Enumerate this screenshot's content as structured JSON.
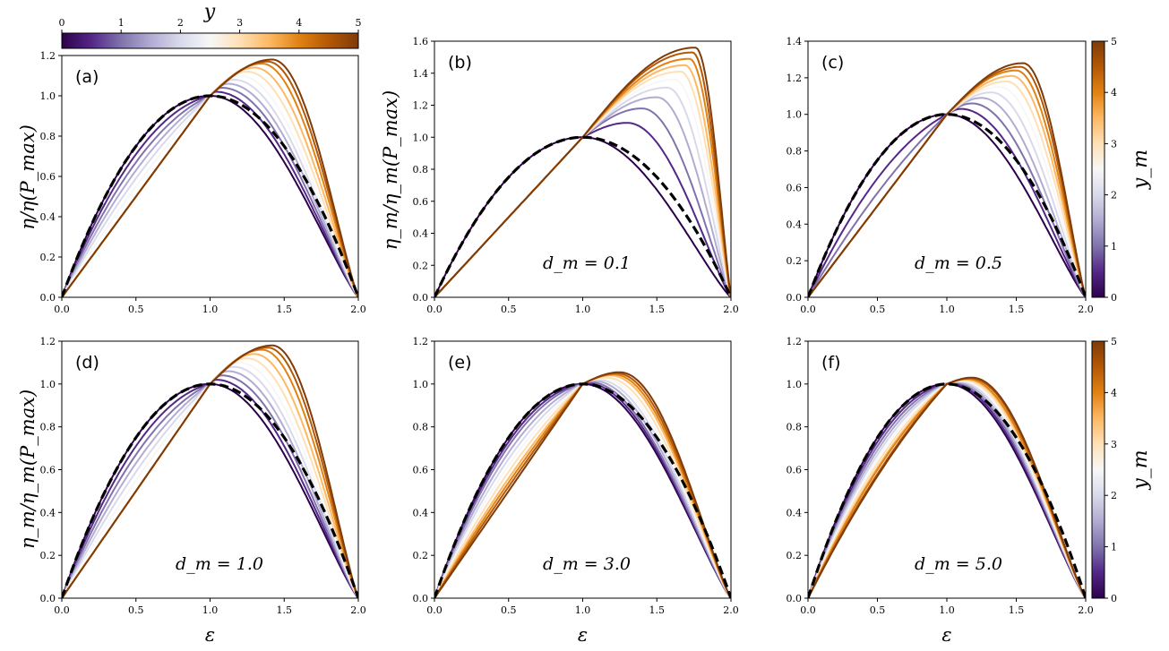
{
  "figure": {
    "top_colorbar": {
      "label": "y",
      "ticks": [
        "0",
        "1",
        "2",
        "3",
        "4",
        "5"
      ],
      "range": [
        0,
        5
      ]
    },
    "side_colorbar_label": "y_m",
    "side_colorbar_ticks": [
      "0",
      "1",
      "2",
      "3",
      "4",
      "5"
    ],
    "xlabel": "ε",
    "colormap_stops": [
      "#2d004b",
      "#542788",
      "#8073ac",
      "#b2abd2",
      "#d8daeb",
      "#f7f7f7",
      "#fee0b6",
      "#fdb863",
      "#e08214",
      "#b35806",
      "#7f3b08"
    ]
  },
  "chart_data": [
    {
      "type": "line",
      "panel": "(a)",
      "annotation": "",
      "ylabel": "η/η(P_max)",
      "xlim": [
        0,
        2
      ],
      "ylim": [
        0,
        1.2
      ],
      "xticks": [
        "0.0",
        "0.5",
        "1.0",
        "1.5",
        "2.0"
      ],
      "yticks": [
        "0.0",
        "0.2",
        "0.4",
        "0.6",
        "0.8",
        "1.0",
        "1.2"
      ],
      "curve_family": {
        "param_values": [
          0,
          0.5,
          1,
          1.5,
          2,
          2.5,
          3,
          3.5,
          4,
          4.5,
          5
        ],
        "peak_x": [
          1.0,
          1.04,
          1.08,
          1.12,
          1.16,
          1.2,
          1.25,
          1.3,
          1.35,
          1.39,
          1.42
        ],
        "peak_y": [
          1.0,
          1.02,
          1.04,
          1.06,
          1.08,
          1.1,
          1.12,
          1.14,
          1.16,
          1.17,
          1.18
        ]
      },
      "dashed_reference": {
        "x": [
          0,
          0.25,
          0.5,
          0.75,
          1.0,
          1.25,
          1.5,
          1.75,
          2.0
        ],
        "y": [
          0,
          0.44,
          0.75,
          0.94,
          1.0,
          0.94,
          0.75,
          0.44,
          0
        ]
      }
    },
    {
      "type": "line",
      "panel": "(b)",
      "annotation": "d_m = 0.1",
      "ylabel": "η_m/η_m(P_max)",
      "xlim": [
        0,
        2
      ],
      "ylim": [
        0,
        1.6
      ],
      "xticks": [
        "0.0",
        "0.5",
        "1.0",
        "1.5",
        "2.0"
      ],
      "yticks": [
        "0.0",
        "0.2",
        "0.4",
        "0.6",
        "0.8",
        "1.0",
        "1.2",
        "1.4",
        "1.6"
      ],
      "curve_family": {
        "param_values": [
          0,
          0.5,
          1,
          1.5,
          2,
          2.5,
          3,
          3.5,
          4,
          4.5,
          5
        ],
        "peak_x": [
          1.0,
          1.3,
          1.4,
          1.5,
          1.57,
          1.62,
          1.66,
          1.69,
          1.72,
          1.74,
          1.76
        ],
        "peak_y": [
          1.0,
          1.09,
          1.18,
          1.25,
          1.31,
          1.36,
          1.41,
          1.45,
          1.49,
          1.53,
          1.56
        ]
      },
      "dashed_reference": {
        "x": [
          0,
          0.25,
          0.5,
          0.75,
          1.0,
          1.25,
          1.5,
          1.75,
          2.0
        ],
        "y": [
          0,
          0.44,
          0.75,
          0.94,
          1.0,
          0.94,
          0.75,
          0.44,
          0
        ]
      }
    },
    {
      "type": "line",
      "panel": "(c)",
      "annotation": "d_m = 0.5",
      "ylabel": "",
      "xlim": [
        0,
        2
      ],
      "ylim": [
        0,
        1.4
      ],
      "xticks": [
        "0.0",
        "0.5",
        "1.0",
        "1.5",
        "2.0"
      ],
      "yticks": [
        "0.0",
        "0.2",
        "0.4",
        "0.6",
        "0.8",
        "1.0",
        "1.2",
        "1.4"
      ],
      "curve_family": {
        "param_values": [
          0,
          0.5,
          1,
          1.5,
          2,
          2.5,
          3,
          3.5,
          4,
          4.5,
          5
        ],
        "peak_x": [
          1.0,
          1.1,
          1.18,
          1.25,
          1.32,
          1.38,
          1.43,
          1.47,
          1.5,
          1.53,
          1.55
        ],
        "peak_y": [
          1.0,
          1.03,
          1.06,
          1.09,
          1.12,
          1.15,
          1.18,
          1.21,
          1.24,
          1.26,
          1.28
        ]
      },
      "dashed_reference": {
        "x": [
          0,
          0.25,
          0.5,
          0.75,
          1.0,
          1.25,
          1.5,
          1.75,
          2.0
        ],
        "y": [
          0,
          0.44,
          0.75,
          0.94,
          1.0,
          0.94,
          0.75,
          0.44,
          0
        ]
      }
    },
    {
      "type": "line",
      "panel": "(d)",
      "annotation": "d_m = 1.0",
      "ylabel": "η_m/η_m(P_max)",
      "xlim": [
        0,
        2
      ],
      "ylim": [
        0,
        1.2
      ],
      "xticks": [
        "0.0",
        "0.5",
        "1.0",
        "1.5",
        "2.0"
      ],
      "yticks": [
        "0.0",
        "0.2",
        "0.4",
        "0.6",
        "0.8",
        "1.0",
        "1.2"
      ],
      "curve_family": {
        "param_values": [
          0,
          0.5,
          1,
          1.5,
          2,
          2.5,
          3,
          3.5,
          4,
          4.5,
          5
        ],
        "peak_x": [
          1.0,
          1.04,
          1.08,
          1.12,
          1.16,
          1.2,
          1.25,
          1.3,
          1.35,
          1.39,
          1.42
        ],
        "peak_y": [
          1.0,
          1.02,
          1.04,
          1.06,
          1.08,
          1.1,
          1.12,
          1.14,
          1.16,
          1.17,
          1.18
        ]
      },
      "dashed_reference": {
        "x": [
          0,
          0.25,
          0.5,
          0.75,
          1.0,
          1.25,
          1.5,
          1.75,
          2.0
        ],
        "y": [
          0,
          0.44,
          0.75,
          0.94,
          1.0,
          0.94,
          0.75,
          0.44,
          0
        ]
      }
    },
    {
      "type": "line",
      "panel": "(e)",
      "annotation": "d_m = 3.0",
      "ylabel": "",
      "xlim": [
        0,
        2
      ],
      "ylim": [
        0,
        1.2
      ],
      "xticks": [
        "0.0",
        "0.5",
        "1.0",
        "1.5",
        "2.0"
      ],
      "yticks": [
        "0.0",
        "0.2",
        "0.4",
        "0.6",
        "0.8",
        "1.0",
        "1.2"
      ],
      "curve_family": {
        "param_values": [
          0,
          0.5,
          1,
          1.5,
          2,
          2.5,
          3,
          3.5,
          4,
          4.5,
          5
        ],
        "peak_x": [
          1.0,
          1.02,
          1.04,
          1.07,
          1.1,
          1.13,
          1.16,
          1.19,
          1.21,
          1.23,
          1.25
        ],
        "peak_y": [
          1.0,
          1.005,
          1.01,
          1.015,
          1.02,
          1.025,
          1.03,
          1.04,
          1.045,
          1.05,
          1.055
        ]
      },
      "dashed_reference": {
        "x": [
          0,
          0.25,
          0.5,
          0.75,
          1.0,
          1.25,
          1.5,
          1.75,
          2.0
        ],
        "y": [
          0,
          0.44,
          0.75,
          0.94,
          1.0,
          0.94,
          0.75,
          0.44,
          0
        ]
      }
    },
    {
      "type": "line",
      "panel": "(f)",
      "annotation": "d_m = 5.0",
      "ylabel": "",
      "xlim": [
        0,
        2
      ],
      "ylim": [
        0,
        1.2
      ],
      "xticks": [
        "0.0",
        "0.5",
        "1.0",
        "1.5",
        "2.0"
      ],
      "yticks": [
        "0.0",
        "0.2",
        "0.4",
        "0.6",
        "0.8",
        "1.0",
        "1.2"
      ],
      "curve_family": {
        "param_values": [
          0,
          0.5,
          1,
          1.5,
          2,
          2.5,
          3,
          3.5,
          4,
          4.5,
          5
        ],
        "peak_x": [
          1.0,
          1.02,
          1.04,
          1.06,
          1.08,
          1.1,
          1.12,
          1.14,
          1.15,
          1.17,
          1.18
        ],
        "peak_y": [
          1.0,
          1.003,
          1.006,
          1.009,
          1.012,
          1.015,
          1.018,
          1.021,
          1.024,
          1.027,
          1.03
        ]
      },
      "dashed_reference": {
        "x": [
          0,
          0.25,
          0.5,
          0.75,
          1.0,
          1.25,
          1.5,
          1.75,
          2.0
        ],
        "y": [
          0,
          0.44,
          0.75,
          0.94,
          1.0,
          0.94,
          0.75,
          0.44,
          0
        ]
      }
    }
  ]
}
